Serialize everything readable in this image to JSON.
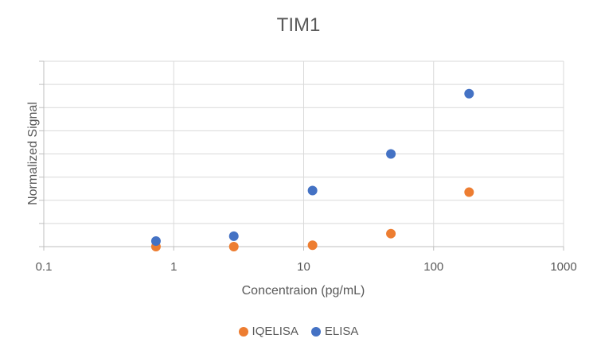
{
  "chart_data": {
    "type": "scatter",
    "title": "TIM1",
    "xlabel": "Concentraion (pg/mL)",
    "ylabel": "Normalized Signal",
    "x_scale": "log",
    "xlim": [
      0.1,
      1000
    ],
    "x_ticks": [
      "0.1",
      "1",
      "10",
      "100",
      "1000"
    ],
    "ylim": [
      0,
      8
    ],
    "y_ticks_labeled": false,
    "grid": true,
    "legend_position": "bottom",
    "series": [
      {
        "name": "IQELISA",
        "color": "#ED7D31",
        "points": [
          {
            "x": 0.73,
            "y": 0.0
          },
          {
            "x": 2.9,
            "y": 0.0
          },
          {
            "x": 11.7,
            "y": 0.06
          },
          {
            "x": 46.9,
            "y": 0.56
          },
          {
            "x": 187.5,
            "y": 2.35
          }
        ]
      },
      {
        "name": "ELISA",
        "color": "#4472C4",
        "points": [
          {
            "x": 0.73,
            "y": 0.24
          },
          {
            "x": 2.9,
            "y": 0.45
          },
          {
            "x": 11.7,
            "y": 2.42
          },
          {
            "x": 46.9,
            "y": 4.0
          },
          {
            "x": 187.5,
            "y": 6.6
          }
        ]
      }
    ]
  }
}
